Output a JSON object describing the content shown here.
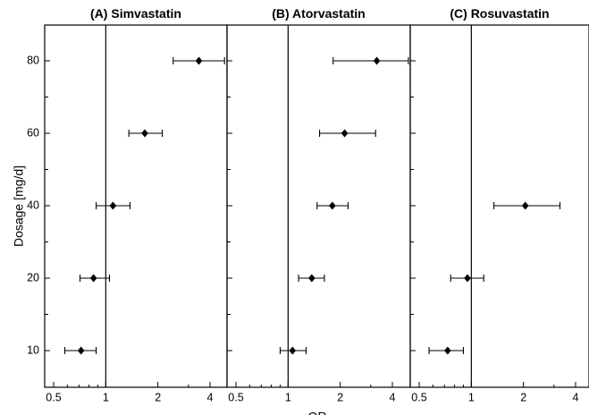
{
  "chart_data": {
    "type": "scatter",
    "ylabel": "Dosage [mg/d]",
    "xlabel": "OR",
    "x_scale": "log",
    "x_ticks": [
      "0.5",
      "1",
      "2",
      "4"
    ],
    "y_categories": [
      "10",
      "20",
      "40",
      "60",
      "80"
    ],
    "panels": [
      {
        "title": "(A) Simvastatin",
        "points": [
          {
            "dose": "10",
            "or": 0.72,
            "lo": 0.58,
            "hi": 0.88
          },
          {
            "dose": "20",
            "or": 0.85,
            "lo": 0.71,
            "hi": 1.05
          },
          {
            "dose": "40",
            "or": 1.1,
            "lo": 0.88,
            "hi": 1.38
          },
          {
            "dose": "60",
            "or": 1.68,
            "lo": 1.36,
            "hi": 2.12
          },
          {
            "dose": "80",
            "or": 3.45,
            "lo": 2.45,
            "hi": 4.85
          }
        ]
      },
      {
        "title": "(B) Atorvastatin",
        "points": [
          {
            "dose": "10",
            "or": 1.06,
            "lo": 0.9,
            "hi": 1.27
          },
          {
            "dose": "20",
            "or": 1.37,
            "lo": 1.15,
            "hi": 1.62
          },
          {
            "dose": "40",
            "or": 1.8,
            "lo": 1.47,
            "hi": 2.22
          },
          {
            "dose": "60",
            "or": 2.12,
            "lo": 1.52,
            "hi": 3.2
          },
          {
            "dose": "80",
            "or": 3.25,
            "lo": 1.82,
            "hi": 4.95
          }
        ]
      },
      {
        "title": "(C) Rosuvastatin",
        "points": [
          {
            "dose": "10",
            "or": 0.73,
            "lo": 0.57,
            "hi": 0.9
          },
          {
            "dose": "20",
            "or": 0.95,
            "lo": 0.76,
            "hi": 1.18
          },
          {
            "dose": "40",
            "or": 2.05,
            "lo": 1.35,
            "hi": 3.25
          }
        ]
      }
    ]
  }
}
